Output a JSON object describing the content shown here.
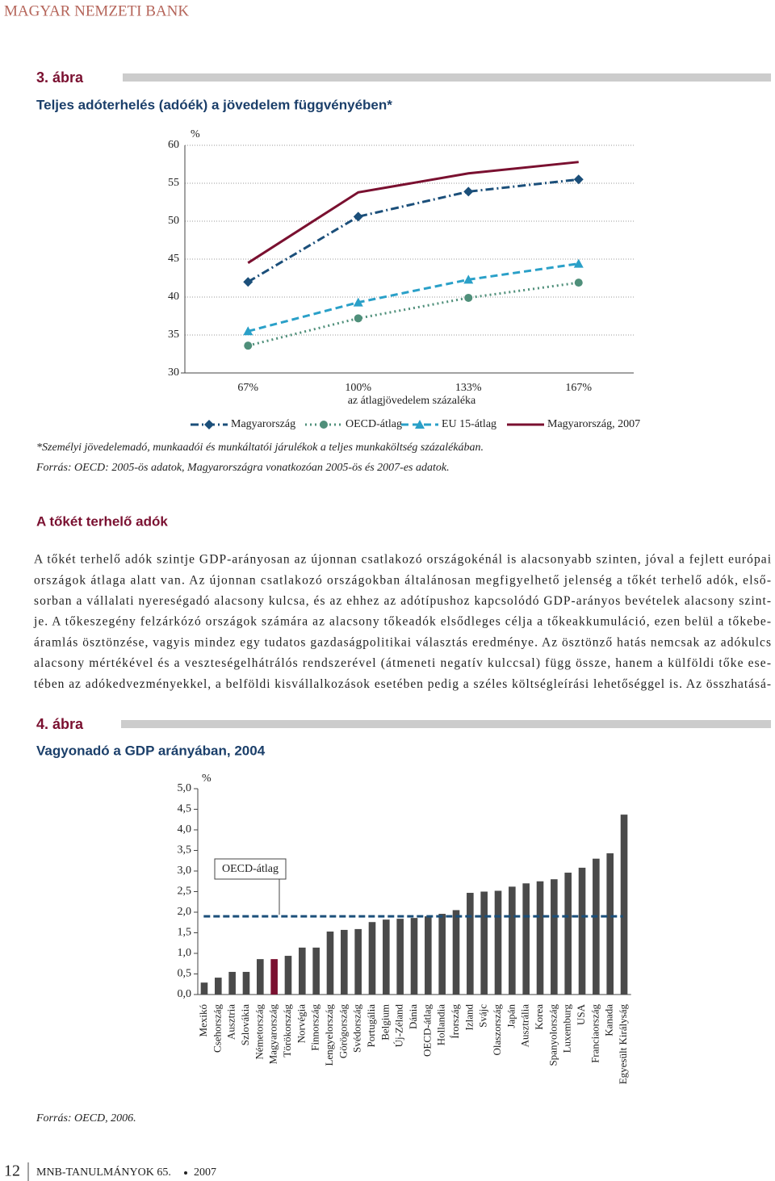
{
  "header": {
    "title": "MAGYAR NEMZETI BANK"
  },
  "chart_data": [
    {
      "type": "line",
      "figure_label": "3. ábra",
      "title": "Teljes adóterhelés (adóék) a jövedelem függvényében*",
      "y_unit": "%",
      "xlabel": "az átlagjövedelem százaléka",
      "categories": [
        "67%",
        "100%",
        "133%",
        "167%"
      ],
      "series": [
        {
          "name": "Magyarország",
          "color": "#1b4f7a",
          "line_style": "dash-dot",
          "marker": "diamond",
          "values": [
            42.0,
            50.6,
            53.9,
            55.5
          ]
        },
        {
          "name": "OECD-átlag",
          "color": "#4f8f7a",
          "line_style": "dotted",
          "marker": "circle",
          "values": [
            33.6,
            37.2,
            39.9,
            41.9
          ]
        },
        {
          "name": "EU 15-átlag",
          "color": "#2aa0c8",
          "line_style": "dashed",
          "marker": "triangle",
          "values": [
            35.5,
            39.3,
            42.3,
            44.4
          ]
        },
        {
          "name": "Magyarország, 2007",
          "color": "#7a1030",
          "line_style": "solid",
          "marker": "none",
          "values": [
            44.5,
            53.8,
            56.3,
            57.8
          ]
        }
      ],
      "ylim": [
        30,
        60
      ],
      "yticks": [
        30,
        35,
        40,
        45,
        50,
        55,
        60
      ],
      "grid": true,
      "legend": "bottom",
      "notes": [
        "*Személyi jövedelemadó, munkaadói és munkáltatói járulékok a teljes munkaköltség százalékában.",
        "Forrás: OECD: 2005-ös adatok, Magyarországra vonatkozóan 2005-ös és 2007-es adatok."
      ]
    },
    {
      "type": "bar",
      "figure_label": "4. ábra",
      "title": "Vagyonadó a GDP arányában, 2004",
      "y_unit": "%",
      "categories": [
        "Mexikó",
        "Csehország",
        "Ausztria",
        "Szlovákia",
        "Németország",
        "Magyarország",
        "Törökország",
        "Norvégia",
        "Finnország",
        "Lengyelország",
        "Görögország",
        "Svédország",
        "Portugália",
        "Belgium",
        "Új-Zéland",
        "Dánia",
        "OECD-átlag",
        "Hollandia",
        "Írország",
        "Izland",
        "Svájc",
        "Olaszország",
        "Japán",
        "Ausztrália",
        "Korea",
        "Spanyolország",
        "Luxemburg",
        "USA",
        "Franciaország",
        "Kanada",
        "Egyesült Királyság"
      ],
      "values": [
        0.29,
        0.41,
        0.55,
        0.55,
        0.86,
        0.86,
        0.94,
        1.14,
        1.14,
        1.53,
        1.57,
        1.59,
        1.76,
        1.82,
        1.84,
        1.86,
        1.9,
        1.96,
        2.05,
        2.47,
        2.5,
        2.52,
        2.62,
        2.7,
        2.75,
        2.8,
        2.96,
        3.08,
        3.3,
        3.43,
        4.37
      ],
      "color": "#4a4a4a",
      "highlight_category": "Magyarország",
      "highlight_color": "#7a1030",
      "reference_line": {
        "label": "OECD-átlag",
        "value": 1.9,
        "color": "#1b4f7a"
      },
      "ylim": [
        0,
        5
      ],
      "yticks": [
        {
          "value": 0,
          "label": "0,0"
        },
        {
          "value": 0.5,
          "label": "0,5"
        },
        {
          "value": 1,
          "label": "1,0"
        },
        {
          "value": 1.5,
          "label": "1,5"
        },
        {
          "value": 2,
          "label": "2,0"
        },
        {
          "value": 2.5,
          "label": "2,5"
        },
        {
          "value": 3,
          "label": "3,0"
        },
        {
          "value": 3.5,
          "label": "3,5"
        },
        {
          "value": 4,
          "label": "4,0"
        },
        {
          "value": 4.5,
          "label": "4,5"
        },
        {
          "value": 5,
          "label": "5,0"
        }
      ],
      "grid": false,
      "source": "Forrás: OECD, 2006."
    }
  ],
  "section": {
    "heading": "A tőkét terhelő adók",
    "lines": [
      "A tőkét terhelő adók szintje GDP-arányosan az újonnan csatlakozó országokénál is alacsonyabb szinten, jóval a fejlett európai",
      "országok átlaga alatt van. Az újonnan csatlakozó országokban általánosan megfigyelhető jelenség a tőkét terhelő adók, első-",
      "sorban a vállalati nyereségadó alacsony kulcsa, és az ehhez az adótípushoz kapcsolódó GDP-arányos bevételek alacsony szint-",
      "je. A tőkeszegény felzárkózó országok számára az alacsony tőkeadók elsődleges célja a tőkeakkumuláció, ezen belül a tőkebe-",
      "áramlás ösztönzése, vagyis mindez egy tudatos gazdaságpolitikai választás eredménye. Az ösztönző hatás nemcsak az adókulcs",
      "alacsony mértékével és a veszteségelhátrálós rendszerével (átmeneti negatív kulccsal) függ össze, hanem a külföldi tőke ese-",
      "tében az adókedvezményekkel, a belföldi kisvállalkozások esetében pedig a széles költségleírási lehetőséggel is. Az összhatásá-"
    ]
  },
  "footer": {
    "page_number": "12",
    "series": "MNB-TANULMÁNYOK 65.",
    "year": "2007"
  }
}
